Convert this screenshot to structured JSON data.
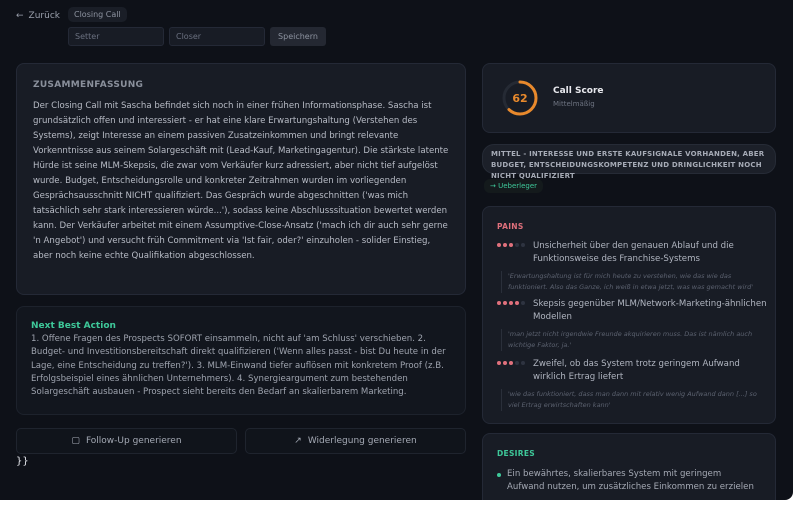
{
  "header": {
    "back_label": "Zurück",
    "call_type": "Closing Call",
    "setter_placeholder": "Setter",
    "closer_placeholder": "Closer",
    "save_label": "Speichern"
  },
  "summary": {
    "heading": "ZUSAMMENFASSUNG",
    "text": "Der Closing Call mit Sascha befindet sich noch in einer frühen Informationsphase. Sascha ist grundsätzlich offen und interessiert - er hat eine klare Erwartungshaltung (Verstehen des Systems), zeigt Interesse an einem passiven Zusatzeinkommen und bringt relevante Vorkenntnisse aus seinem Solargeschäft mit (Lead-Kauf, Marketingagentur). Die stärkste latente Hürde ist seine MLM-Skepsis, die zwar vom Verkäufer kurz adressiert, aber nicht tief aufgelöst wurde. Budget, Entscheidungsrolle und konkreter Zeitrahmen wurden im vorliegenden Gesprächsausschnitt NICHT qualifiziert. Das Gespräch wurde abgeschnitten ('was mich tatsächlich sehr stark interessieren würde...'), sodass keine Abschlusssituation bewertet werden kann. Der Verkäufer arbeitet mit einem Assumptive-Close-Ansatz ('mach ich dir auch sehr gerne 'n Angebot') und versucht früh Commitment via 'Ist fair, oder?' einzuholen - solider Einstieg, aber noch keine echte Qualifikation abgeschlossen."
  },
  "next_best_action": {
    "heading": "Next Best Action",
    "text": "1. Offene Fragen des Prospects SOFORT einsammeln, nicht auf 'am Schluss' verschieben. 2. Budget- und Investitionsbereitschaft direkt qualifizieren ('Wenn alles passt - bist Du heute in der Lage, eine Entscheidung zu treffen?'). 3. MLM-Einwand tiefer auflösen mit konkretem Proof (z.B. Erfolgsbeispiel eines ähnlichen Unternehmers). 4. Synergieargument zum bestehenden Solargeschäft ausbauen - Prospect sieht bereits den Bedarf an skalierbarem Marketing."
  },
  "actions": {
    "followup_label": "Follow-Up generieren",
    "rebuttal_label": "Widerlegung generieren"
  },
  "stray_text": "}}",
  "score": {
    "value": "62",
    "percent": 62,
    "title": "Call Score",
    "rating": "Mittelmäßig",
    "color": "#e8892c"
  },
  "assessment": "MITTEL - INTERESSE UND ERSTE KAUFSIGNALE VORHANDEN, ABER BUDGET, ENTSCHEIDUNGSKOMPETENZ UND DRINGLICHKEIT NOCH NICHT QUALIFIZIERT",
  "type_tag": "→ Ueberleger",
  "pains": {
    "heading": "PAINS",
    "items": [
      {
        "text": "Unsicherheit über den genauen Ablauf und die Funktionsweise des Franchise-Systems",
        "severity": 3,
        "quote": "'Erwartungshaltung ist für mich heute zu verstehen, wie das wie das funktioniert. Also das Ganze, ich weiß in etwa jetzt, was was gemacht wird'"
      },
      {
        "text": "Skepsis gegenüber MLM/Network-Marketing-ähnlichen Modellen",
        "severity": 4,
        "quote": "'man jetzt nicht irgendwie Freunde akquirieren muss. Das ist nämlich auch wichtige Faktor, ja.'"
      },
      {
        "text": "Zweifel, ob das System trotz geringem Aufwand wirklich Ertrag liefert",
        "severity": 3,
        "quote": "'wie das funktioniert, dass man dann mit relativ wenig Aufwand dann [...] so viel Ertrag erwirtschaften kann'"
      }
    ]
  },
  "desires": {
    "heading": "DESIRES",
    "items": [
      "Ein bewährtes, skalierbares System mit geringem Aufwand nutzen, um zusätzliches Einkommen zu erzielen"
    ]
  }
}
